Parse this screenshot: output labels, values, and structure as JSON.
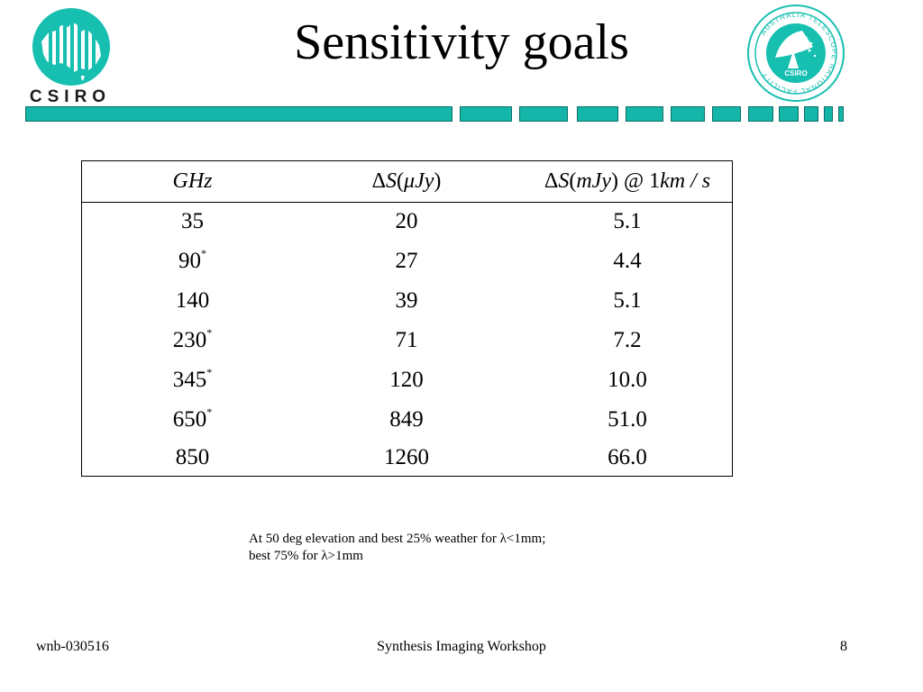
{
  "slide": {
    "title": "Sensitivity goals"
  },
  "logos": {
    "csiro_text": "CSIRO",
    "atnf_ring_text": "AUSTRALIA TELESCOPE NATIONAL FACILITY",
    "atnf_center_text": "CSIRO"
  },
  "colors": {
    "stripe_teal": "#13b6a9",
    "logo_teal": "#17bfb1"
  },
  "table": {
    "headers": {
      "col1": "GHz",
      "col2_delta": "Δ",
      "col2_symbol": "S",
      "col2_open": "(",
      "col2_unit": "μJy",
      "col2_close": ")",
      "col3_delta": "Δ",
      "col3_symbol": "S",
      "col3_open": "(",
      "col3_unit": "mJy",
      "col3_close": ")",
      "col3_at": "@",
      "col3_value": "1",
      "col3_rate": "km / s"
    },
    "rows": [
      {
        "freq": "35",
        "mark": "",
        "dS_uJy": "20",
        "dS_mJy": "5.1"
      },
      {
        "freq": "90",
        "mark": "*",
        "dS_uJy": "27",
        "dS_mJy": "4.4"
      },
      {
        "freq": "140",
        "mark": "",
        "dS_uJy": "39",
        "dS_mJy": "5.1"
      },
      {
        "freq": "230",
        "mark": "*",
        "dS_uJy": "71",
        "dS_mJy": "7.2"
      },
      {
        "freq": "345",
        "mark": "*",
        "dS_uJy": "120",
        "dS_mJy": "10.0"
      },
      {
        "freq": "650",
        "mark": "*",
        "dS_uJy": "849",
        "dS_mJy": "51.0"
      },
      {
        "freq": "850",
        "mark": "",
        "dS_uJy": "1260",
        "dS_mJy": "66.0"
      }
    ]
  },
  "note": {
    "line1": "At 50 deg elevation and best 25% weather for λ<1mm;",
    "line2": "best 75% for λ>1mm"
  },
  "footer": {
    "left": "wnb-030516",
    "center": "Synthesis Imaging Workshop",
    "page": "8"
  }
}
